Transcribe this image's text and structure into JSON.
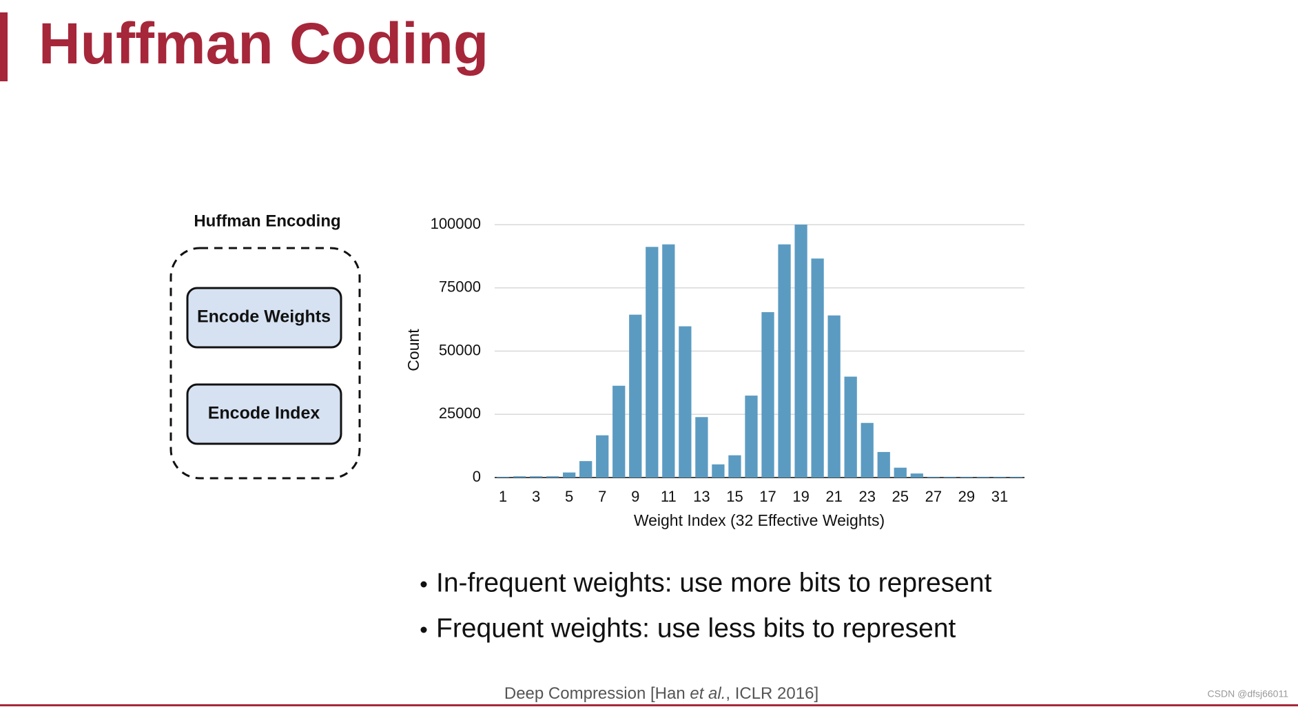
{
  "header": {
    "title": "Huffman Coding"
  },
  "diagram": {
    "title": "Huffman Encoding",
    "nodes": [
      {
        "label": "Encode Weights"
      },
      {
        "label": "Encode Index"
      }
    ]
  },
  "chart_data": {
    "type": "bar",
    "categories": [
      1,
      null,
      3,
      null,
      5,
      null,
      7,
      null,
      9,
      null,
      11,
      null,
      13,
      null,
      15,
      null,
      17,
      null,
      19,
      null,
      21,
      null,
      23,
      null,
      25,
      null,
      27,
      null,
      29,
      null,
      31,
      null
    ],
    "values": [
      300,
      500,
      500,
      500,
      2000,
      6500,
      16700,
      36300,
      64400,
      91200,
      92200,
      59800,
      23900,
      5200,
      8800,
      32400,
      65400,
      92200,
      100000,
      86600,
      64100,
      39900,
      21600,
      10100,
      3900,
      1600,
      300,
      300,
      300,
      300,
      300,
      300
    ],
    "color": "#5b9bc2",
    "x_label": "Weight Index (32 Effective Weights)",
    "y_label": "Count",
    "ylim": [
      0,
      100000
    ],
    "yticks": [
      0,
      25000,
      50000,
      75000,
      100000
    ],
    "grid": true
  },
  "bullets": [
    "In-frequent weights: use more bits to represent",
    "Frequent weights: use less bits to represent"
  ],
  "citation": {
    "before": "Deep Compression [Han ",
    "italic": "et al.",
    "after": ", ICLR 2016]"
  },
  "watermark": "CSDN @dfsj66011"
}
